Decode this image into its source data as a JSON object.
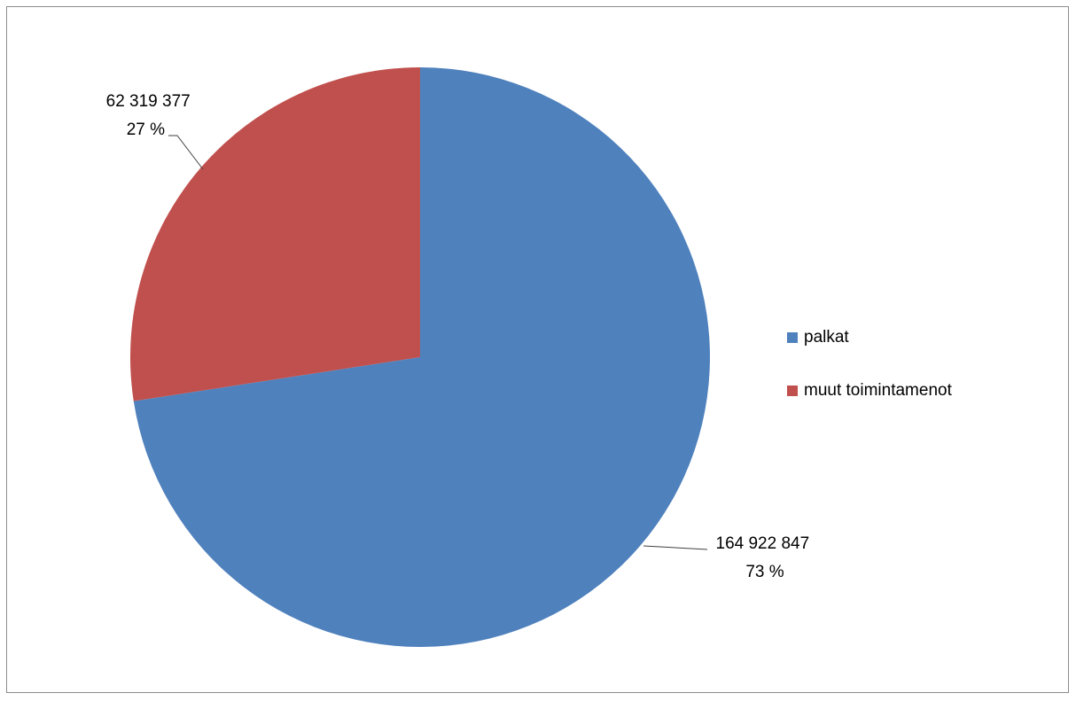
{
  "chart_data": {
    "type": "pie",
    "title": "",
    "slices": [
      {
        "name": "palkat",
        "value": 164922847,
        "value_label": "164 922 847",
        "percent_label": "73 %",
        "color": "#4F81BD"
      },
      {
        "name": "muut toimintamenot",
        "value": 62319377,
        "value_label": "62 319 377",
        "percent_label": "27 %",
        "color": "#C0504D"
      }
    ],
    "legend_position": "right"
  }
}
